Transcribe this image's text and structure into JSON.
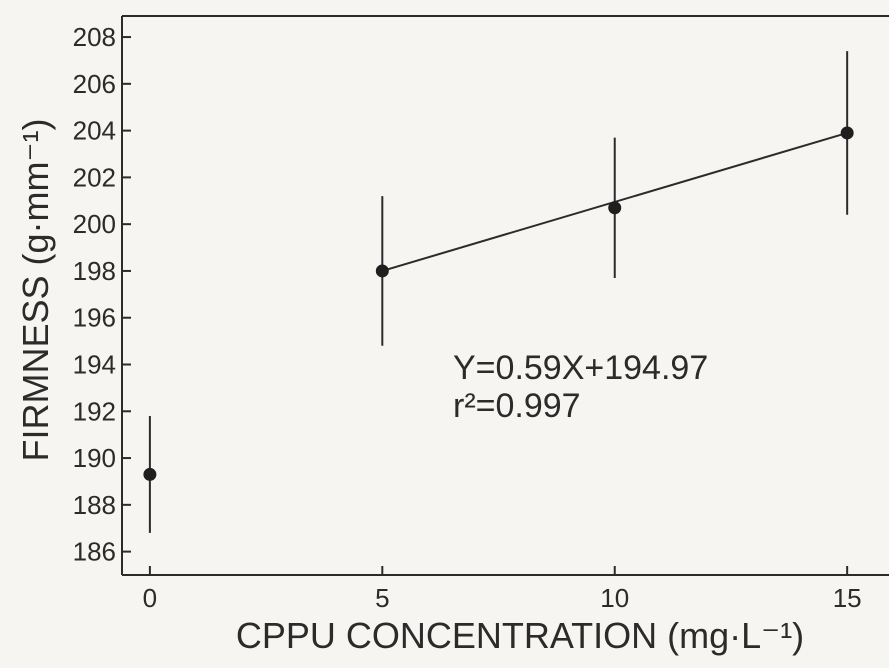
{
  "chart_data": {
    "type": "scatter",
    "title": "",
    "xlabel": "CPPU CONCENTRATION (mg·L⁻¹)",
    "ylabel": "FIRMNESS (g·mm⁻¹)",
    "x_ticks": [
      "0",
      "5",
      "10",
      "15"
    ],
    "y_ticks": [
      "186",
      "188",
      "190",
      "192",
      "194",
      "196",
      "198",
      "200",
      "202",
      "204",
      "206",
      "208"
    ],
    "xlim": [
      -0.6,
      15.9
    ],
    "ylim": [
      185,
      208.9
    ],
    "grid": false,
    "series": [
      {
        "points": [
          {
            "x": 0,
            "y": 189.3,
            "err_low": 186.8,
            "err_high": 191.8
          },
          {
            "x": 5,
            "y": 198.0,
            "err_low": 194.8,
            "err_high": 201.2
          },
          {
            "x": 10,
            "y": 200.7,
            "err_low": 197.7,
            "err_high": 203.7
          },
          {
            "x": 15,
            "y": 203.9,
            "err_low": 200.4,
            "err_high": 207.4
          }
        ]
      }
    ],
    "fit_line": {
      "x": [
        5,
        15
      ],
      "y": [
        198.0,
        203.9
      ]
    },
    "annotations": [
      "Y=0.59X+194.97",
      "r²=0.997"
    ]
  }
}
